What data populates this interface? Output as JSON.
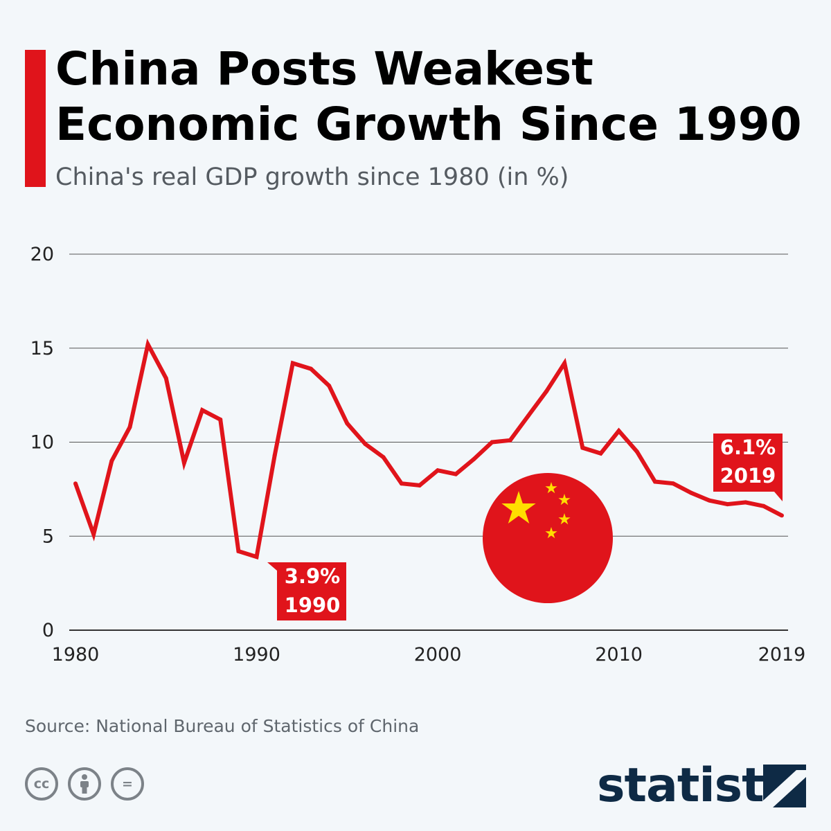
{
  "header": {
    "title_line1": "China Posts Weakest",
    "title_line2": "Economic Growth Since 1990",
    "subtitle": "China's real GDP growth since 1980 (in %)"
  },
  "chart_data": {
    "type": "line",
    "x": [
      1980,
      1981,
      1982,
      1983,
      1984,
      1985,
      1986,
      1987,
      1988,
      1989,
      1990,
      1991,
      1992,
      1993,
      1994,
      1995,
      1996,
      1997,
      1998,
      1999,
      2000,
      2001,
      2002,
      2003,
      2004,
      2005,
      2006,
      2007,
      2008,
      2009,
      2010,
      2011,
      2012,
      2013,
      2014,
      2015,
      2016,
      2017,
      2018,
      2019
    ],
    "series": [
      {
        "values": [
          7.8,
          5.1,
          9.0,
          10.8,
          15.2,
          13.4,
          8.9,
          11.7,
          11.2,
          4.2,
          3.9,
          9.3,
          14.2,
          13.9,
          13.0,
          11.0,
          9.9,
          9.2,
          7.8,
          7.7,
          8.5,
          8.3,
          9.1,
          10.0,
          10.1,
          11.4,
          12.7,
          14.2,
          9.7,
          9.4,
          10.6,
          9.5,
          7.9,
          7.8,
          7.3,
          6.9,
          6.7,
          6.8,
          6.6,
          6.1
        ],
        "color": "#e0141b"
      }
    ],
    "y_ticks": [
      "0",
      "5",
      "10",
      "15",
      "20"
    ],
    "x_tick_labels": [
      "1980",
      "1990",
      "2000",
      "2010",
      "2019"
    ],
    "ylim": [
      0,
      20
    ],
    "xlim": [
      1980,
      2019
    ],
    "grid": true,
    "annotations": [
      {
        "value": "3.9%",
        "year": "1990"
      },
      {
        "value": "6.1%",
        "year": "2019"
      }
    ],
    "decoration": "china-flag-circle"
  },
  "footer": {
    "source": "Source: National Bureau of Statistics of China",
    "license_icons": [
      {
        "icon": "cc-icon",
        "glyph": "cc"
      },
      {
        "icon": "attribution-icon",
        "glyph": ""
      },
      {
        "icon": "no-derivatives-icon",
        "glyph": "="
      }
    ],
    "brand": "statista"
  },
  "colors": {
    "accent": "#e0141b",
    "brand": "#0e2a45",
    "flag_star": "#ffde00"
  }
}
